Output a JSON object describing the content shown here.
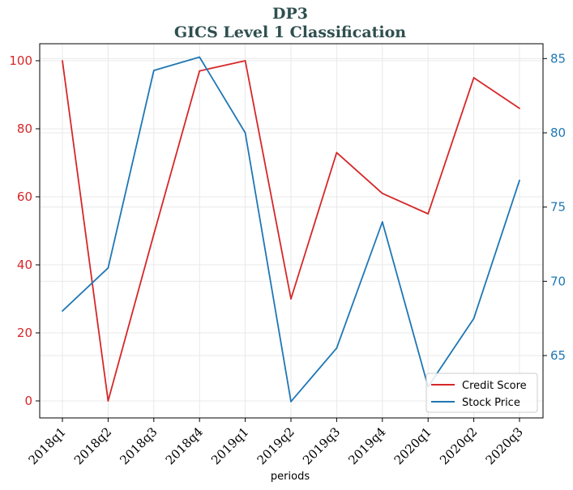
{
  "chart_data": {
    "type": "line",
    "title": "DP3",
    "subtitle": "GICS Level 1 Classification",
    "xlabel": "periods",
    "ylabel_left": "",
    "ylabel_right": "",
    "categories": [
      "2018q1",
      "2018q2",
      "2018q3",
      "2018q4",
      "2019q1",
      "2019q2",
      "2019q3",
      "2019q4",
      "2020q1",
      "2020q2",
      "2020q3"
    ],
    "series": [
      {
        "name": "Credit Score",
        "axis": "left",
        "color": "#d62728",
        "values": [
          100,
          0,
          49,
          97,
          100,
          30,
          73,
          61,
          55,
          95,
          86
        ]
      },
      {
        "name": "Stock Price",
        "axis": "right",
        "color": "#1f77b4",
        "values": [
          68.0,
          70.9,
          84.2,
          85.1,
          80.0,
          61.9,
          65.5,
          74.0,
          62.9,
          67.5,
          76.8
        ]
      }
    ],
    "ylim_left": [
      -5,
      105
    ],
    "yticks_left": [
      0,
      20,
      40,
      60,
      80,
      100
    ],
    "ylim_right": [
      60.8,
      86.0
    ],
    "yticks_right": [
      65,
      70,
      75,
      80,
      85
    ],
    "grid": true,
    "legend_position": "lower-right",
    "title_color": "#2f4f4f",
    "left_axis_color": "#d62728",
    "right_axis_color": "#1f77b4"
  }
}
